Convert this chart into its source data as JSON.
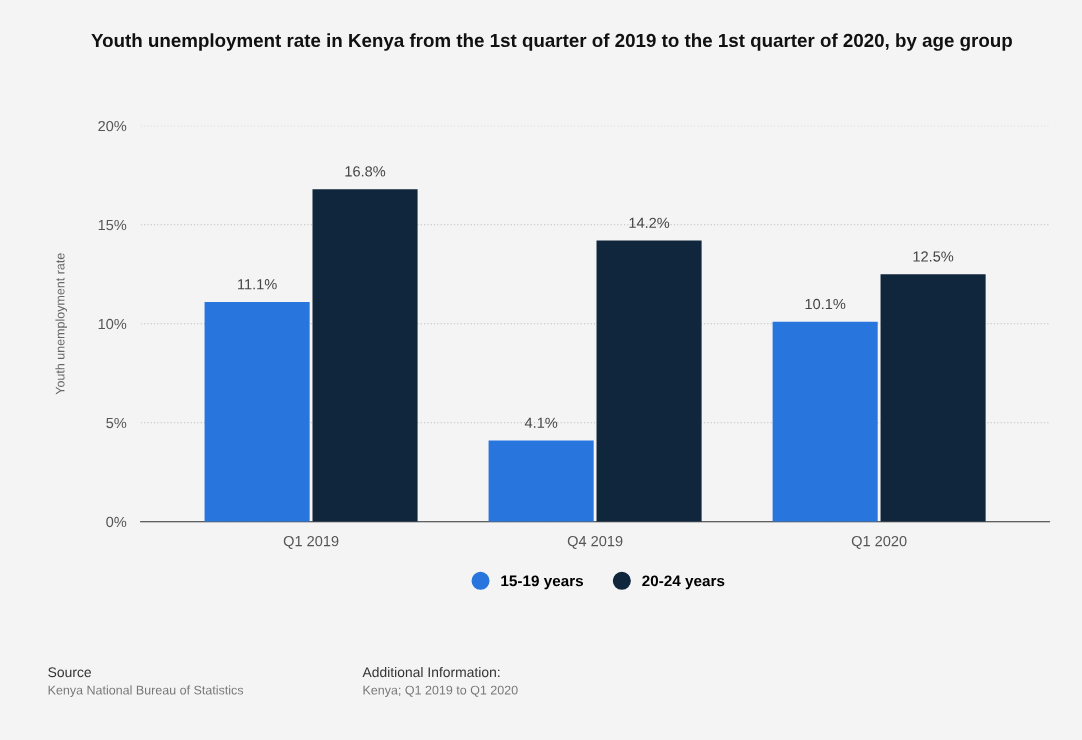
{
  "chart_data": {
    "type": "bar",
    "title": "Youth unemployment rate in Kenya from the 1st quarter of 2019 to the 1st quarter of 2020, by age group",
    "ylabel": "Youth unemployment rate",
    "categories": [
      "Q1 2019",
      "Q4 2019",
      "Q1 2020"
    ],
    "series": [
      {
        "name": "15-19 years",
        "color": "#2876dd",
        "values": [
          11.1,
          4.1,
          10.1
        ],
        "value_labels": [
          "11.1%",
          "4.1%",
          "10.1%"
        ]
      },
      {
        "name": "20-24 years",
        "color": "#10263d",
        "values": [
          16.8,
          14.2,
          12.5
        ],
        "value_labels": [
          "16.8%",
          "14.2%",
          "12.5%"
        ]
      }
    ],
    "ylim": [
      0,
      20
    ],
    "yticks": [
      {
        "value": 0,
        "label": "0%"
      },
      {
        "value": 5,
        "label": "5%"
      },
      {
        "value": 10,
        "label": "10%"
      },
      {
        "value": 15,
        "label": "15%"
      },
      {
        "value": 20,
        "label": "20%"
      }
    ],
    "grid": "y",
    "legend": "bottom",
    "annotations": [
      "Source",
      "Kenya National Bureau of Statistics",
      "Additional Information:",
      "Kenya; Q1 2019 to Q1 2020"
    ]
  }
}
